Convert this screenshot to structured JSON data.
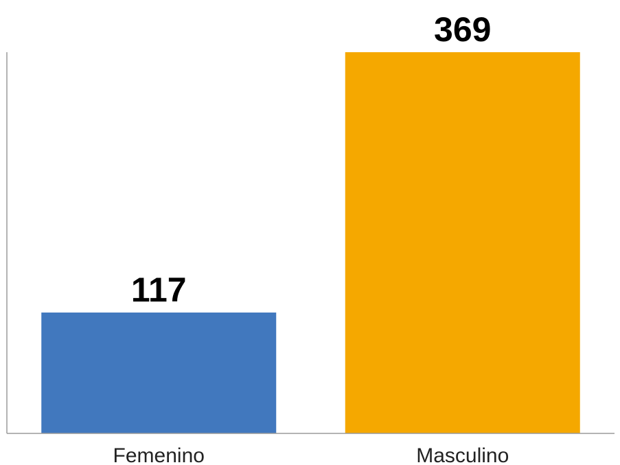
{
  "chart_data": {
    "type": "bar",
    "categories": [
      "Femenino",
      "Masculino"
    ],
    "values": [
      117,
      369
    ],
    "colors": [
      "#4178be",
      "#f5a800"
    ],
    "title": "",
    "xlabel": "",
    "ylabel": "",
    "ylim": [
      0,
      369
    ],
    "grid": false,
    "legend": "none",
    "data_labels": true
  }
}
